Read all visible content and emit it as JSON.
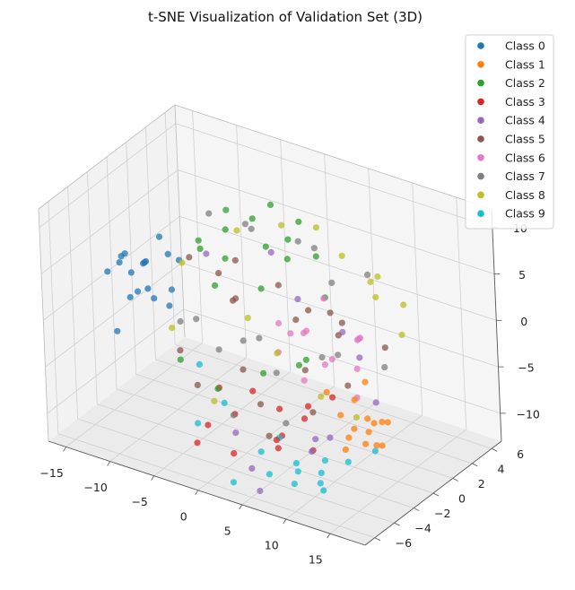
{
  "chart_data": {
    "type": "scatter",
    "dimensions": 3,
    "title": "t-SNE Visualization of Validation Set (3D)",
    "xlabel": "",
    "ylabel": "",
    "zlabel": "",
    "x_ticks": [
      "−15",
      "−10",
      "−5",
      "0",
      "5",
      "10",
      "15"
    ],
    "y_ticks": [
      "−6",
      "−4",
      "−2",
      "0",
      "2",
      "4",
      "6"
    ],
    "z_ticks": [
      "−10",
      "−5",
      "0",
      "5",
      "10"
    ],
    "xlim": [
      -17,
      19
    ],
    "ylim": [
      -7,
      7
    ],
    "zlim": [
      -13,
      12
    ],
    "grid": true,
    "legend_position": "top-right",
    "series": [
      {
        "name": "Class 0",
        "color": "#1f77b4",
        "points": [
          [
            -14,
            -3,
            3
          ],
          [
            -13.5,
            -2,
            4
          ],
          [
            -13,
            -1.5,
            2
          ],
          [
            -12.5,
            -2.5,
            5
          ],
          [
            -12,
            -1,
            3
          ],
          [
            -11.5,
            -3,
            1
          ],
          [
            -11,
            -2,
            4
          ],
          [
            -13,
            0,
            2
          ],
          [
            -12,
            -4,
            -2
          ],
          [
            -11,
            0.5,
            3
          ],
          [
            -10.5,
            -1.5,
            0
          ],
          [
            -12.5,
            1,
            4
          ],
          [
            -13.5,
            -0.5,
            -1
          ],
          [
            -10,
            -2.5,
            2
          ],
          [
            -11.5,
            2,
            1
          ],
          [
            -12,
            -3.5,
            5
          ],
          [
            -10.5,
            0,
            -2
          ],
          [
            -9,
            -1,
            1
          ]
        ]
      },
      {
        "name": "Class 1",
        "color": "#ff7f0e",
        "points": [
          [
            16,
            -5,
            -3
          ],
          [
            16.5,
            -4,
            -4
          ],
          [
            17,
            -4.5,
            -2
          ],
          [
            15.5,
            -5.5,
            -5
          ],
          [
            17.5,
            -3.5,
            -3
          ],
          [
            16,
            -3,
            -4
          ],
          [
            15,
            -4,
            -1
          ],
          [
            18,
            -4,
            -5
          ],
          [
            14.5,
            -5,
            -2
          ],
          [
            16.5,
            -6,
            -3
          ],
          [
            17,
            -2.5,
            -4
          ],
          [
            15.5,
            -3.5,
            -6
          ],
          [
            13,
            -5,
            0
          ],
          [
            14,
            -2,
            -1
          ],
          [
            18.5,
            -5,
            -4
          ]
        ]
      },
      {
        "name": "Class 2",
        "color": "#2ca02c",
        "points": [
          [
            -6,
            2,
            6
          ],
          [
            -4,
            3,
            7
          ],
          [
            -2,
            2.5,
            5
          ],
          [
            0,
            3,
            6
          ],
          [
            -5,
            1,
            4
          ],
          [
            -3,
            4,
            8
          ],
          [
            1,
            2,
            5
          ],
          [
            -7,
            3,
            7
          ],
          [
            -1,
            5,
            6
          ],
          [
            -4,
            -1,
            3
          ],
          [
            2,
            4,
            4
          ],
          [
            -8,
            1,
            5
          ],
          [
            0,
            0,
            -6
          ],
          [
            -3,
            -2,
            -7
          ],
          [
            3,
            1,
            -5
          ],
          [
            -6,
            -3,
            -4
          ],
          [
            5,
            0,
            -3
          ],
          [
            -1,
            1,
            2
          ],
          [
            4,
            3,
            1
          ],
          [
            -9,
            2,
            3
          ]
        ]
      },
      {
        "name": "Class 3",
        "color": "#d62728",
        "points": [
          [
            -2,
            -4,
            -9
          ],
          [
            0,
            -3,
            -8
          ],
          [
            2,
            -5,
            -10
          ],
          [
            4,
            -2,
            -7
          ],
          [
            6,
            -4,
            -9
          ],
          [
            -4,
            -1,
            -8
          ],
          [
            8,
            -3,
            -6
          ],
          [
            3,
            -1,
            -11
          ],
          [
            1,
            -2,
            -6
          ],
          [
            5,
            0,
            -8
          ],
          [
            7,
            -5,
            -7
          ],
          [
            -1,
            -6,
            -9
          ],
          [
            9,
            -1,
            -5
          ],
          [
            10,
            -4,
            -8
          ]
        ]
      },
      {
        "name": "Class 4",
        "color": "#9467bd",
        "points": [
          [
            0,
            -3,
            -10
          ],
          [
            4,
            -5,
            -11
          ],
          [
            8,
            -2,
            -9
          ],
          [
            12,
            -4,
            -6
          ],
          [
            2,
            2,
            1
          ],
          [
            -6,
            0,
            5
          ],
          [
            10,
            1,
            -2
          ],
          [
            14,
            -1,
            -4
          ],
          [
            6,
            -6,
            -12
          ],
          [
            -2,
            3,
            4
          ],
          [
            11,
            -5,
            -7
          ],
          [
            7,
            2,
            -1
          ]
        ]
      },
      {
        "name": "Class 5",
        "color": "#8c564b",
        "points": [
          [
            -8,
            0,
            4
          ],
          [
            -5,
            2,
            3
          ],
          [
            -2,
            -1,
            2
          ],
          [
            1,
            1,
            3
          ],
          [
            4,
            0,
            1
          ],
          [
            7,
            2,
            0
          ],
          [
            10,
            -1,
            2
          ],
          [
            13,
            1,
            0
          ],
          [
            -6,
            -3,
            -3
          ],
          [
            -3,
            -4,
            -5
          ],
          [
            0,
            -2,
            -4
          ],
          [
            3,
            -3,
            -6
          ],
          [
            6,
            -1,
            -3
          ],
          [
            9,
            -3,
            -5
          ],
          [
            12,
            -2,
            -2
          ],
          [
            -4,
            1,
            0
          ],
          [
            2,
            3,
            -1
          ],
          [
            8,
            0,
            3
          ],
          [
            5,
            -4,
            -8
          ],
          [
            -7,
            2,
            1
          ]
        ]
      },
      {
        "name": "Class 6",
        "color": "#e377c2",
        "points": [
          [
            2,
            0,
            0
          ],
          [
            4,
            1,
            -1
          ],
          [
            6,
            -1,
            1
          ],
          [
            8,
            0,
            -2
          ],
          [
            10,
            1,
            0
          ],
          [
            12,
            -1,
            -1
          ],
          [
            5,
            2,
            2
          ],
          [
            7,
            -2,
            -3
          ],
          [
            9,
            2,
            -1
          ],
          [
            3,
            -1,
            -2
          ],
          [
            11,
            0,
            1
          ],
          [
            1,
            2,
            -3
          ],
          [
            6,
            1,
            -4
          ],
          [
            13,
            -2,
            -3
          ]
        ]
      },
      {
        "name": "Class 7",
        "color": "#7f7f7f",
        "points": [
          [
            -9,
            3,
            6
          ],
          [
            -6,
            4,
            5
          ],
          [
            -3,
            2,
            7
          ],
          [
            0,
            4,
            5
          ],
          [
            3,
            3,
            6
          ],
          [
            6,
            2,
            4
          ],
          [
            9,
            3,
            5
          ],
          [
            -7,
            -2,
            -1
          ],
          [
            -4,
            -3,
            1
          ],
          [
            -1,
            -1,
            -2
          ],
          [
            2,
            -2,
            0
          ],
          [
            5,
            -3,
            -2
          ],
          [
            8,
            -1,
            -1
          ],
          [
            11,
            -2,
            1
          ],
          [
            14,
            0,
            -1
          ],
          [
            -5,
            0,
            -5
          ],
          [
            1,
            -4,
            -7
          ],
          [
            7,
            -4,
            -6
          ]
        ]
      },
      {
        "name": "Class 8",
        "color": "#bcbd22",
        "points": [
          [
            -7,
            4,
            4
          ],
          [
            -3,
            5,
            5
          ],
          [
            1,
            5,
            6
          ],
          [
            5,
            4,
            5
          ],
          [
            9,
            4,
            4
          ],
          [
            13,
            3,
            3
          ],
          [
            -10,
            1,
            2
          ],
          [
            -8,
            -2,
            -2
          ],
          [
            4,
            -2,
            -1
          ],
          [
            10,
            -3,
            -3
          ],
          [
            14,
            -3,
            -4
          ],
          [
            0,
            -5,
            -5
          ],
          [
            -5,
            3,
            -4
          ],
          [
            7,
            5,
            2
          ],
          [
            11,
            2,
            4
          ],
          [
            15,
            1,
            2
          ]
        ]
      },
      {
        "name": "Class 9",
        "color": "#17becf",
        "points": [
          [
            4,
            -4,
            -10
          ],
          [
            6,
            -5,
            -11
          ],
          [
            8,
            -4,
            -10
          ],
          [
            10,
            -6,
            -10
          ],
          [
            12,
            -5,
            -9
          ],
          [
            14,
            -4,
            -8
          ],
          [
            5,
            -3,
            -9
          ],
          [
            9,
            -2,
            -11
          ],
          [
            11,
            -4,
            -12
          ],
          [
            13,
            -6,
            -9
          ],
          [
            -2,
            -5,
            -8
          ],
          [
            0,
            -4,
            -6
          ],
          [
            -5,
            -2,
            -5
          ],
          [
            16,
            -3,
            -7
          ],
          [
            3,
            -6,
            -12
          ],
          [
            7,
            -3,
            -12
          ]
        ]
      }
    ]
  }
}
